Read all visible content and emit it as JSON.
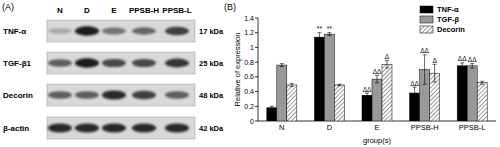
{
  "blot": {
    "panel_label": "(A)",
    "lanes": [
      "N",
      "D",
      "E",
      "PPSB-H",
      "PPSB-L"
    ],
    "rows": [
      {
        "label": "TNF-α",
        "size": "17 kDa",
        "intensity": [
          0.25,
          0.9,
          0.5,
          0.55,
          0.75
        ]
      },
      {
        "label": "TGF-β1",
        "size": "25 kDa",
        "intensity": [
          0.6,
          0.9,
          0.7,
          0.7,
          0.8
        ]
      },
      {
        "label": "Decorin",
        "size": "48 kDa",
        "intensity": [
          0.6,
          0.6,
          0.85,
          0.75,
          0.6
        ]
      },
      {
        "label": "β-actin",
        "size": "42 kDa",
        "intensity": [
          0.85,
          0.85,
          0.85,
          0.85,
          0.85
        ]
      }
    ]
  },
  "chart_data": {
    "type": "bar",
    "panel_label": "(B)",
    "x_label": "group(s)",
    "y_label": "Relative of expression",
    "categories": [
      "N",
      "D",
      "E",
      "PPSB-H",
      "PPSB-L"
    ],
    "series": [
      {
        "name": "TNF-α",
        "color": "#000000",
        "line_style": "solid",
        "values": [
          0.18,
          1.14,
          0.35,
          0.38,
          0.75
        ],
        "errors": [
          0.02,
          0.06,
          0.03,
          0.08,
          0.04
        ],
        "annotations": [
          null,
          "**",
          "ΔΔ",
          "ΔΔ",
          "ΔΔ"
        ]
      },
      {
        "name": "TGF-β",
        "color": "#999999",
        "line_style": "solid",
        "values": [
          0.76,
          1.18,
          0.57,
          0.7,
          0.75
        ],
        "errors": [
          0.02,
          0.02,
          0.05,
          0.2,
          0.03
        ],
        "annotations": [
          null,
          "**",
          "ΔΔ",
          "ΔΔ",
          "ΔΔ"
        ]
      },
      {
        "name": "Decorin",
        "color": "#333333",
        "line_style": "hatch",
        "values": [
          0.49,
          0.49,
          0.77,
          0.65,
          0.52
        ],
        "errors": [
          0.02,
          0.01,
          0.05,
          0.12,
          0.02
        ],
        "annotations": [
          null,
          null,
          "Δ",
          "Δ",
          null
        ]
      }
    ],
    "ylim": [
      0,
      1.4
    ],
    "yticks": [
      0,
      0.2,
      0.4,
      0.6,
      0.8,
      1,
      1.2,
      1.4
    ],
    "legend": "upper-right"
  }
}
